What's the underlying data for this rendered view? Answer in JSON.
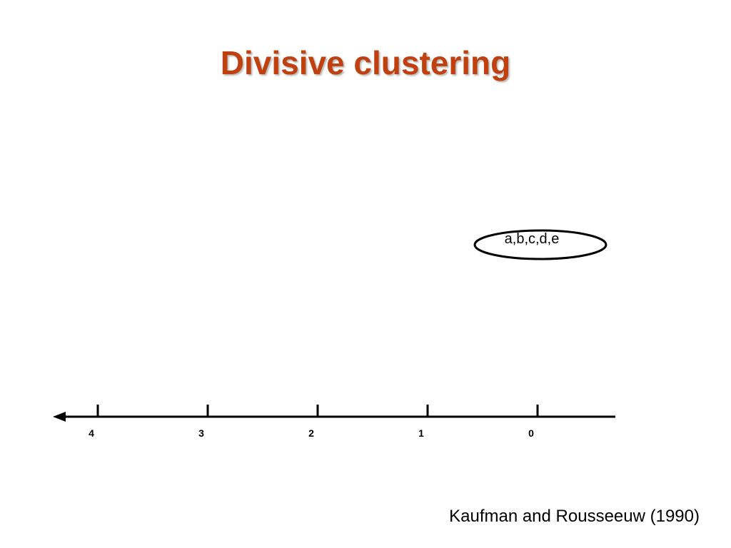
{
  "slide": {
    "title": "Divisive clustering",
    "citation": "Kaufman and Rousseeuw (1990)"
  },
  "diagram": {
    "cluster_label": "a,b,c,d,e",
    "axis": {
      "direction": "decreasing-right-to-left",
      "arrow": "left",
      "ticks": [
        "4",
        "3",
        "2",
        "1",
        "0"
      ]
    }
  },
  "colors": {
    "title": "#c0410f",
    "ink": "#000000"
  }
}
